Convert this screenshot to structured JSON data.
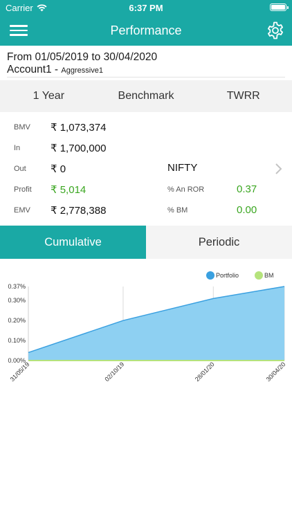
{
  "status_bar": {
    "carrier": "Carrier",
    "time": "6:37 PM"
  },
  "nav": {
    "title": "Performance",
    "menu_icon": "hamburger-menu-icon",
    "settings_icon": "gear-icon"
  },
  "period": {
    "range": "From 01/05/2019 to 30/04/2020",
    "account": "Account1 -",
    "portfolio": "Aggressive1"
  },
  "selectors": [
    {
      "label": "1 Year"
    },
    {
      "label": "Benchmark"
    },
    {
      "label": "TWRR"
    }
  ],
  "metrics": {
    "bmv": {
      "label": "BMV",
      "value": "₹ 1,073,374"
    },
    "in": {
      "label": "In",
      "value": "₹ 1,700,000"
    },
    "out": {
      "label": "Out",
      "value": "₹ 0"
    },
    "benchmark_name": "NIFTY",
    "profit": {
      "label": "Profit",
      "value": "₹ 5,014"
    },
    "an_ror": {
      "label": "% An ROR",
      "value": "0.37"
    },
    "emv": {
      "label": "EMV",
      "value": "₹ 2,778,388"
    },
    "bm": {
      "label": "% BM",
      "value": "0.00"
    }
  },
  "tabs": [
    {
      "label": "Cumulative",
      "active": true
    },
    {
      "label": "Periodic",
      "active": false
    }
  ],
  "colors": {
    "accent": "#1aa9a5",
    "portfolio": "#3aa0e0",
    "portfolio_fill": "#8ed0f2",
    "bm": "#b5e37c",
    "positive": "#3aa620"
  },
  "chart_data": {
    "type": "area",
    "x": [
      "31/05/19",
      "02/10/19",
      "28/01/20",
      "30/04/20"
    ],
    "x_dates": [
      "2019-05-31",
      "2019-10-02",
      "2020-01-28",
      "2020-04-30"
    ],
    "series": [
      {
        "name": "Portfolio",
        "values": [
          0.04,
          0.2,
          0.31,
          0.37
        ]
      },
      {
        "name": "BM",
        "values": [
          0.0,
          0.0,
          0.0,
          0.0
        ]
      }
    ],
    "y_ticks": [
      "0.00%",
      "0.10%",
      "0.20%",
      "0.30%",
      "0.37%"
    ],
    "y_tick_values": [
      0.0,
      0.1,
      0.2,
      0.3,
      0.37
    ],
    "ylim": [
      0,
      0.37
    ],
    "legend_position": "top-right",
    "grid": true
  }
}
